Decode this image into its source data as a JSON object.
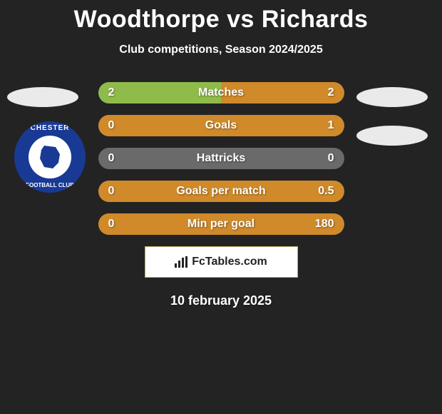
{
  "header": {
    "title": "Woodthorpe vs Richards",
    "subtitle": "Club competitions, Season 2024/2025"
  },
  "club_logo": {
    "top_text": "CHESTER",
    "bottom_text": "FOOTBALL CLUB",
    "ring_color": "#193a94",
    "inner_color": "#ffffff"
  },
  "stats": [
    {
      "label": "Matches",
      "left_value": "2",
      "right_value": "2",
      "left_width_pct": 50,
      "right_width_pct": 50,
      "left_color": "#8fbb4a",
      "right_color": "#d08a2a",
      "base_color": "#6a6a6a"
    },
    {
      "label": "Goals",
      "left_value": "0",
      "right_value": "1",
      "left_width_pct": 0,
      "right_width_pct": 100,
      "left_color": "#8fbb4a",
      "right_color": "#d08a2a",
      "base_color": "#6a6a6a"
    },
    {
      "label": "Hattricks",
      "left_value": "0",
      "right_value": "0",
      "left_width_pct": 0,
      "right_width_pct": 0,
      "left_color": "#8fbb4a",
      "right_color": "#d08a2a",
      "base_color": "#6a6a6a"
    },
    {
      "label": "Goals per match",
      "left_value": "0",
      "right_value": "0.5",
      "left_width_pct": 0,
      "right_width_pct": 100,
      "left_color": "#8fbb4a",
      "right_color": "#d08a2a",
      "base_color": "#6a6a6a"
    },
    {
      "label": "Min per goal",
      "left_value": "0",
      "right_value": "180",
      "left_width_pct": 0,
      "right_width_pct": 100,
      "left_color": "#8fbb4a",
      "right_color": "#d08a2a",
      "base_color": "#6a6a6a"
    }
  ],
  "brand": {
    "text": "FcTables.com"
  },
  "date": "10 february 2025",
  "colors": {
    "background": "#232323",
    "text": "#ffffff",
    "badge": "#eaeaea"
  }
}
